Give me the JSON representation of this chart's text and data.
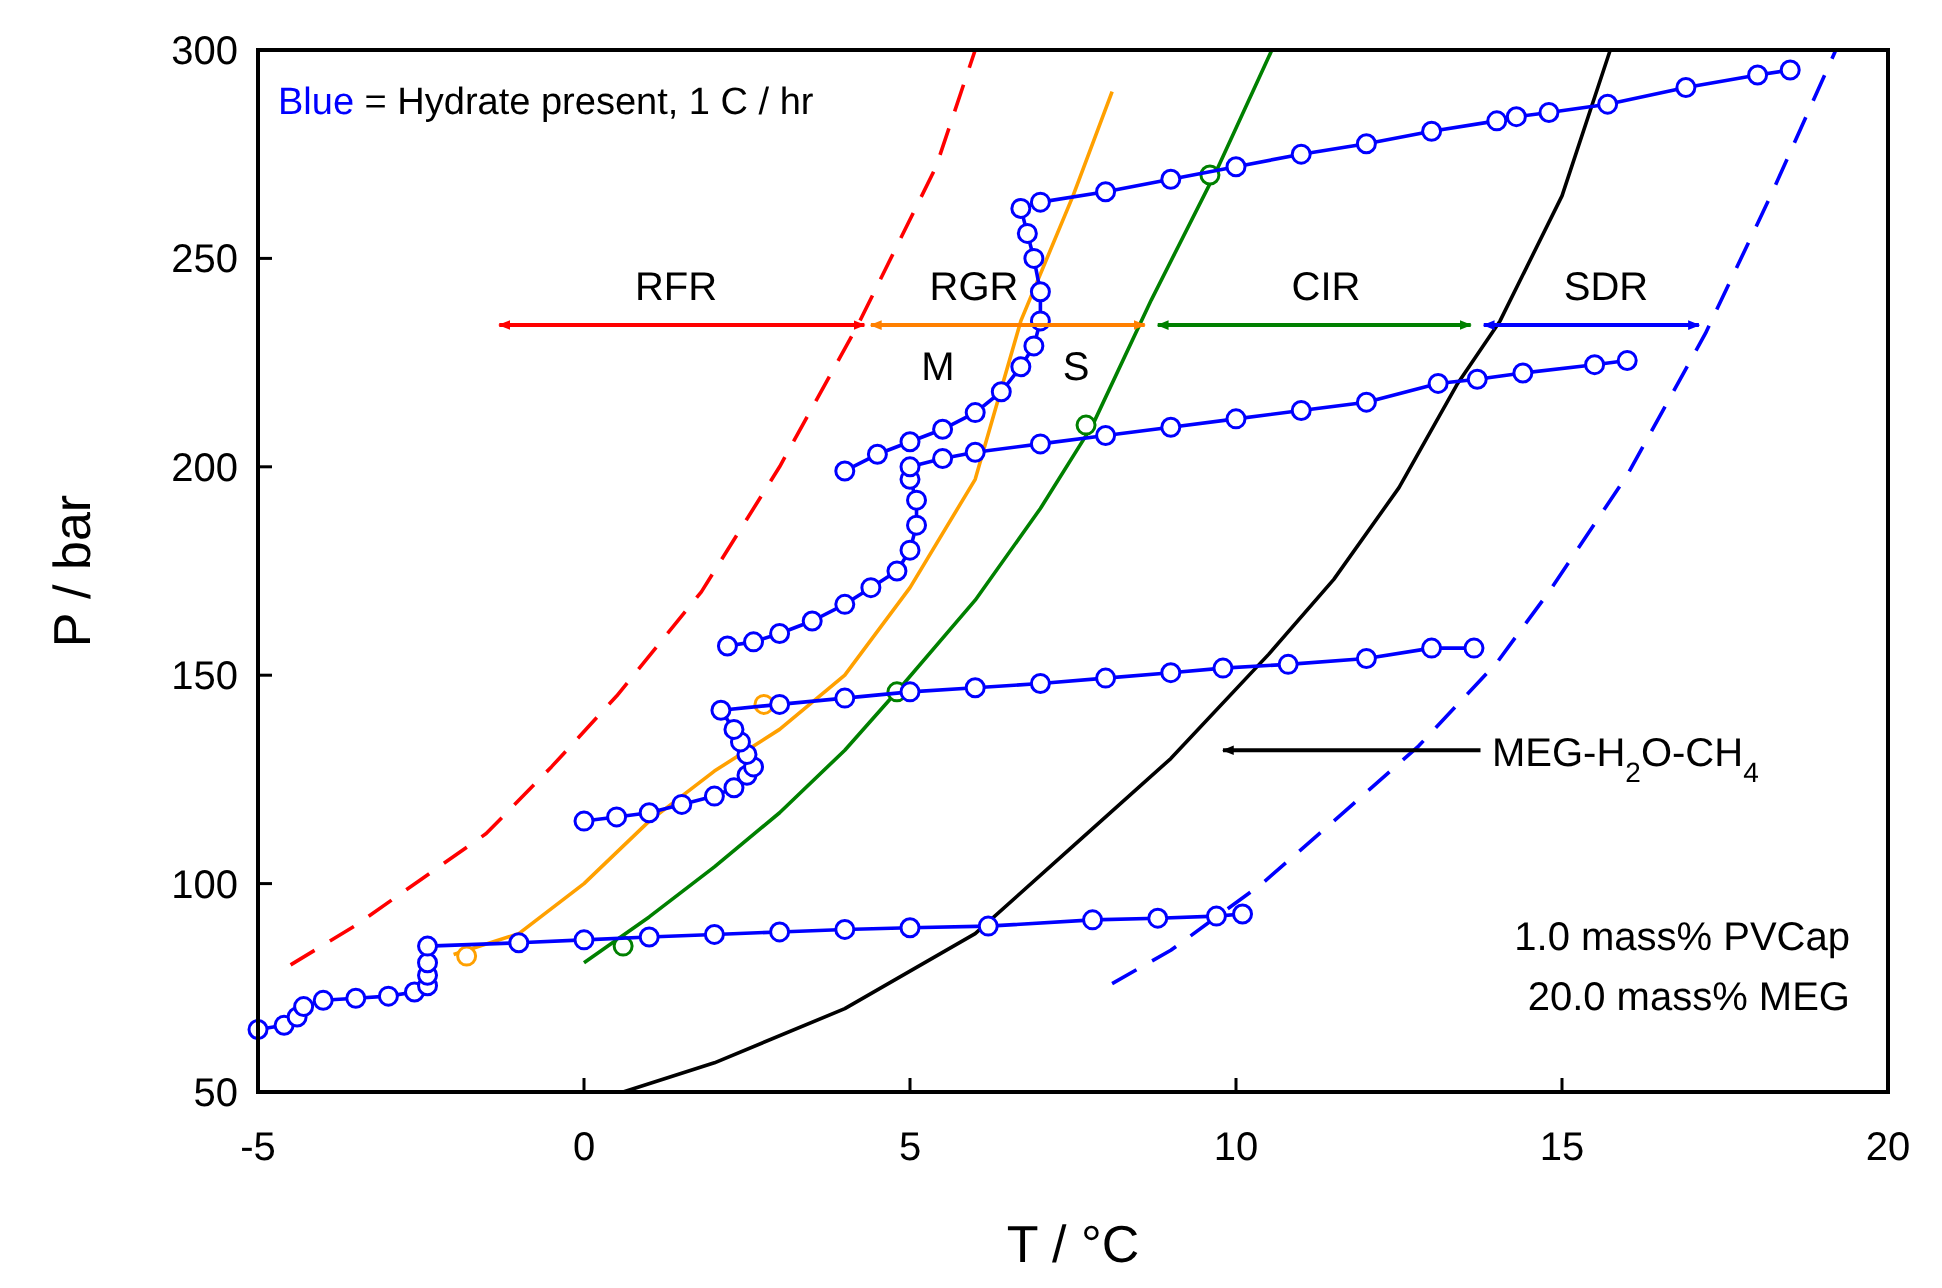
{
  "chart_data": {
    "type": "line",
    "xlabel": "T / °C",
    "ylabel": "P / bar",
    "xlim": [
      -5,
      20
    ],
    "ylim": [
      50,
      300
    ],
    "xticks": [
      -5,
      0,
      5,
      10,
      15,
      20
    ],
    "yticks": [
      50,
      100,
      150,
      200,
      250,
      300
    ],
    "marker": "circle",
    "series": [
      {
        "type": "line",
        "color": "#ff0000",
        "line_style": "dashed",
        "marker": "none",
        "x": [
          -4.5,
          -3.5,
          -2.5,
          -1.5,
          -0.5,
          0.5,
          1.8,
          3,
          4.2,
          5.4,
          6
        ],
        "values": [
          80.5,
          90,
          101,
          112,
          128,
          145,
          170,
          200,
          234,
          272,
          300
        ]
      },
      {
        "type": "line",
        "color": "#ffa000",
        "line_style": "solid",
        "marker": "none",
        "x": [
          -2,
          -1,
          0,
          1,
          2,
          3,
          4,
          5,
          6,
          6.7,
          7.5,
          8.1
        ],
        "values": [
          83,
          88,
          100,
          115,
          127,
          137,
          150,
          171,
          197,
          235,
          265,
          290
        ]
      },
      {
        "type": "scatter",
        "color": "#ffa000",
        "marker": "circle",
        "x": [
          -1.8,
          2.76
        ],
        "values": [
          82.6,
          143
        ]
      },
      {
        "type": "line",
        "color": "#008000",
        "line_style": "solid",
        "marker": "none",
        "x": [
          0,
          1,
          2,
          3,
          4,
          4.85,
          6,
          7,
          7.8,
          8.7,
          9.7,
          10.55
        ],
        "values": [
          81,
          92,
          104,
          117,
          132,
          147,
          168,
          190,
          210,
          240,
          271,
          300
        ]
      },
      {
        "type": "scatter",
        "color": "#008000",
        "marker": "circle",
        "x": [
          0.6,
          4.8,
          7.7,
          9.6
        ],
        "values": [
          85,
          146,
          210,
          270
        ]
      },
      {
        "type": "line",
        "color": "#000000",
        "line_style": "solid",
        "marker": "none",
        "x": [
          0.6,
          2,
          4,
          6,
          7.5,
          9,
          10.5,
          11.5,
          12.5,
          13.4,
          14.05,
          15,
          15.74
        ],
        "values": [
          50,
          57,
          70,
          88,
          109,
          130,
          155,
          173,
          195,
          220,
          235,
          265,
          300
        ]
      },
      {
        "type": "line",
        "color": "#0000ff",
        "line_style": "dashed",
        "marker": "none",
        "x": [
          8.1,
          9,
          10.4,
          11.5,
          12.8,
          14,
          14.8,
          16,
          17.2,
          18.2,
          19.2
        ],
        "values": [
          76,
          84,
          100,
          115,
          133,
          153,
          170,
          198,
          232,
          265,
          300
        ]
      },
      {
        "color": "#0000ff",
        "line_style": "solid",
        "x": [
          -5,
          -4.6,
          -4.4,
          -4.3,
          -4,
          -3.5,
          -3,
          -2.6,
          -2.4,
          -2.4,
          -2.4,
          -2.4,
          -1,
          0,
          1,
          2,
          3,
          4,
          5,
          6.2,
          7.8,
          8.8,
          9.7,
          10.1
        ],
        "values": [
          65,
          66,
          68,
          70.5,
          72,
          72.5,
          73,
          74,
          75.5,
          78,
          81,
          85,
          85.8,
          86.5,
          87.2,
          87.8,
          88.4,
          89,
          89.4,
          89.8,
          91.3,
          91.7,
          92.2,
          92.7
        ]
      },
      {
        "color": "#0000ff",
        "line_style": "solid",
        "x": [
          0,
          0.5,
          1,
          1.5,
          2,
          2.3,
          2.5,
          2.6,
          2.5,
          2.4,
          2.3,
          2.1,
          3,
          4,
          5,
          6,
          7,
          8,
          9,
          9.8,
          10.8,
          12,
          13,
          13.65
        ],
        "values": [
          115,
          116,
          117,
          119,
          121,
          123,
          126,
          128,
          131,
          134,
          137,
          141.6,
          143,
          144.5,
          146,
          147,
          148,
          149.3,
          150.6,
          151.7,
          152.6,
          154,
          156.5,
          156.5
        ]
      },
      {
        "color": "#0000ff",
        "line_style": "solid",
        "x": [
          2.2,
          2.6,
          3,
          3.5,
          4,
          4.4,
          4.8,
          5,
          5.1,
          5.1,
          5,
          5,
          5.5,
          6,
          7,
          8,
          9,
          10,
          11,
          12,
          13.1,
          13.7,
          14.4,
          15.5,
          16
        ],
        "values": [
          157,
          158,
          160,
          163,
          167,
          171,
          175,
          180,
          186,
          192,
          197,
          200,
          202,
          203.5,
          205.5,
          207.5,
          209.5,
          211.5,
          213.5,
          215.5,
          220,
          221,
          222.5,
          224.5,
          225.5
        ]
      },
      {
        "color": "#0000ff",
        "line_style": "solid",
        "x": [
          4,
          4.5,
          5,
          5.5,
          6,
          6.4,
          6.7,
          6.9,
          7,
          7,
          6.9,
          6.8,
          6.7,
          7,
          8,
          9,
          10,
          11,
          12,
          13,
          14,
          14.3,
          14.8,
          15.7,
          16.9,
          18,
          18.5
        ],
        "values": [
          199,
          203,
          206,
          209,
          213,
          218,
          224,
          229,
          235,
          242,
          250,
          256,
          262,
          263.5,
          266,
          269,
          272,
          275,
          277.5,
          280.5,
          283,
          284,
          285,
          287,
          291,
          294,
          295.2
        ]
      },
      {
        "type": "line",
        "color": "#ff0000",
        "line_style": "solid",
        "marker": "none",
        "x": [
          -1.3,
          4.3
        ],
        "values": [
          234,
          234
        ]
      },
      {
        "type": "line",
        "color": "#ff8000",
        "line_style": "solid",
        "marker": "none",
        "x": [
          4.4,
          8.6
        ],
        "values": [
          234,
          234
        ]
      },
      {
        "type": "line",
        "color": "#008000",
        "line_style": "solid",
        "marker": "none",
        "x": [
          8.8,
          13.6
        ],
        "values": [
          234,
          234
        ]
      },
      {
        "type": "line",
        "color": "#0000ff",
        "line_style": "solid",
        "marker": "none",
        "x": [
          13.8,
          17.1
        ],
        "values": [
          234,
          234
        ]
      },
      {
        "type": "line",
        "color": "#000000",
        "line_style": "solid",
        "marker": "none",
        "x": [
          13.75,
          9.8
        ],
        "values": [
          132,
          132
        ]
      }
    ],
    "annotations": [
      "Blue = Hydrate present, 1 C / hr",
      "RFR",
      "RGR",
      "M",
      "S",
      "CIR",
      "SDR",
      "MEG-H$_{2}$O-CH$_{4}$",
      "1.0 mass% PVCap",
      "20.0 mass% MEG"
    ]
  }
}
